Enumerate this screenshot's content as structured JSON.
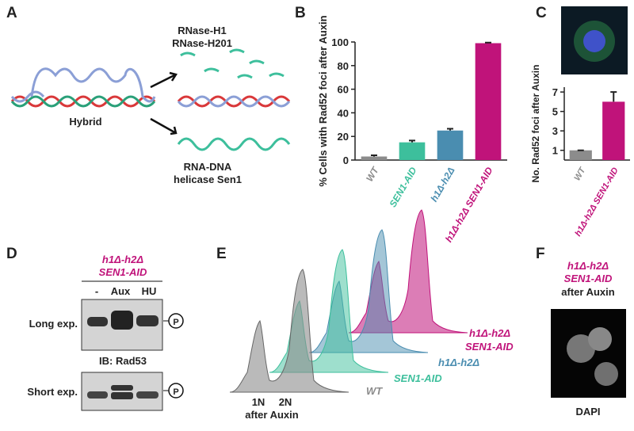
{
  "panels": {
    "letters": [
      "A",
      "B",
      "C",
      "D",
      "E",
      "F"
    ]
  },
  "panel_a": {
    "enzymes": [
      "RNase-H1",
      "RNase-H201"
    ],
    "hybrid": "Hybrid",
    "helicase": [
      "RNA-DNA",
      "helicase Sen1"
    ]
  },
  "chart_data": [
    {
      "type": "bar",
      "y_label": "% Cells with Rad52 foci after Auxin",
      "categories": [
        "WT",
        "SEN1-AID",
        "h1Δ-h2Δ",
        "h1Δ-h2Δ SEN1-AID"
      ],
      "values": [
        3,
        15,
        25,
        99
      ],
      "errors": [
        1,
        1.5,
        1.5,
        0.5
      ],
      "colors": [
        "#8c8c8c",
        "#3dbf9c",
        "#4a8db0",
        "#c0137a"
      ],
      "ylim": [
        0,
        100
      ],
      "yticks": [
        0,
        20,
        40,
        60,
        80,
        100
      ]
    },
    {
      "type": "bar",
      "y_label": "No. Rad52 foci after Auxin",
      "categories": [
        "WT",
        "h1Δ-h2Δ SEN1-AID"
      ],
      "values": [
        1,
        6
      ],
      "errors": [
        0,
        1
      ],
      "colors": [
        "#8c8c8c",
        "#c0137a"
      ],
      "ylim": [
        0,
        7.5
      ],
      "yticks": [
        1,
        3,
        5,
        7
      ]
    }
  ],
  "panel_d": {
    "genotype": [
      "h1Δ-h2Δ",
      "SEN1-AID"
    ],
    "lanes": [
      "-",
      "Aux",
      "HU"
    ],
    "long": "Long exp.",
    "antibody": "IB: Rad53",
    "short": "Short exp.",
    "phospho": "P"
  },
  "panel_e": {
    "samples": [
      "WT",
      "SEN1-AID",
      "h1Δ-h2Δ",
      "h1Δ-h2Δ",
      "SEN1-AID"
    ],
    "x_labels": [
      "1N",
      "2N"
    ],
    "x_note": "after Auxin"
  },
  "panel_f": {
    "genotype": [
      "h1Δ-h2Δ",
      "SEN1-AID"
    ],
    "condition": "after Auxin",
    "stain": "DAPI"
  }
}
